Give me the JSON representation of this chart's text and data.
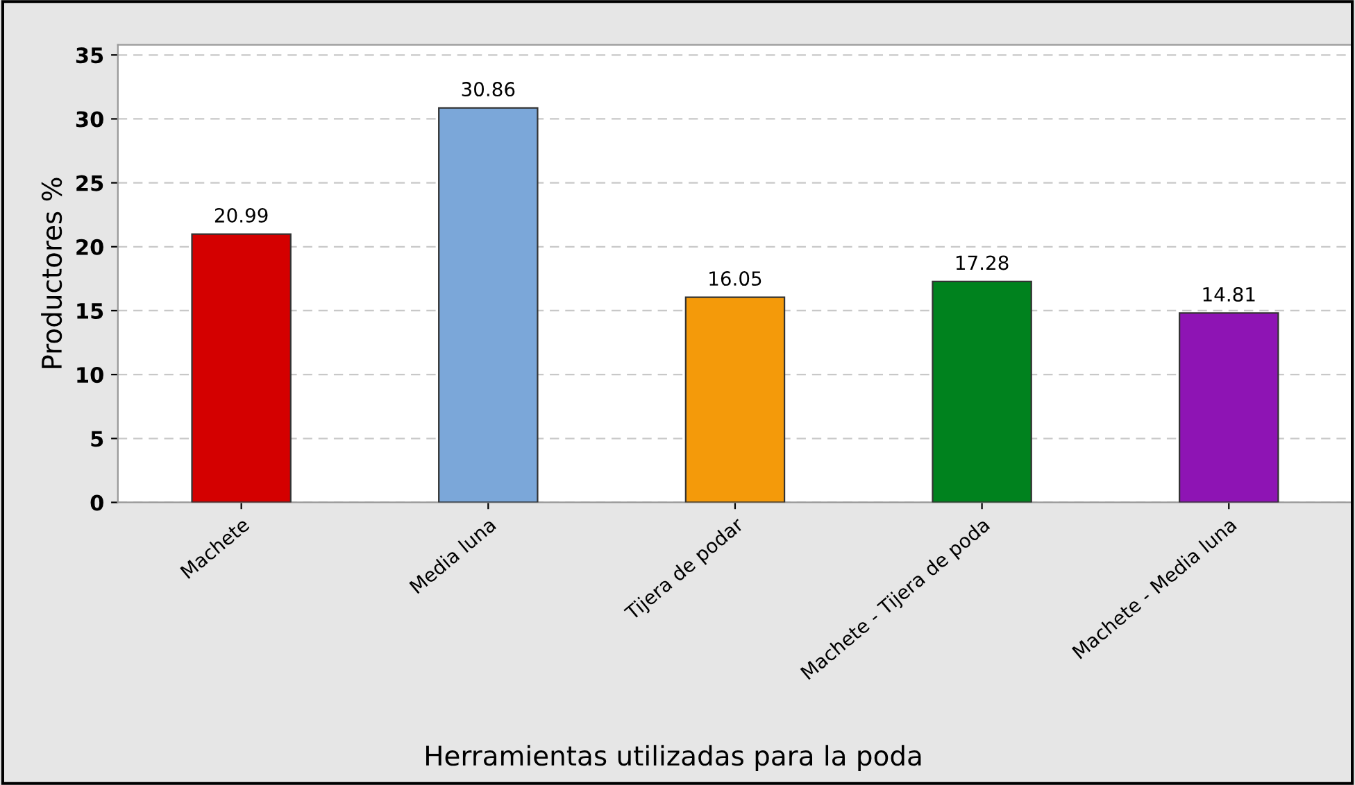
{
  "chart_data": {
    "type": "bar",
    "xlabel": "Herramientas utilizadas para la poda",
    "ylabel": "Productores %",
    "categories": [
      "Machete",
      "Media luna",
      "Tijera de podar",
      "Machete - Tijera de poda",
      "Machete - Media luna"
    ],
    "values": [
      20.99,
      30.86,
      16.05,
      17.28,
      14.81
    ],
    "colors": [
      "#d40000",
      "#7ba7d9",
      "#f49a0a",
      "#00821e",
      "#8e14b4"
    ],
    "ylim": [
      0,
      35.8
    ],
    "yticks": [
      0,
      5,
      10,
      15,
      20,
      25,
      30,
      35
    ],
    "grid": "y",
    "data_labels": true
  }
}
